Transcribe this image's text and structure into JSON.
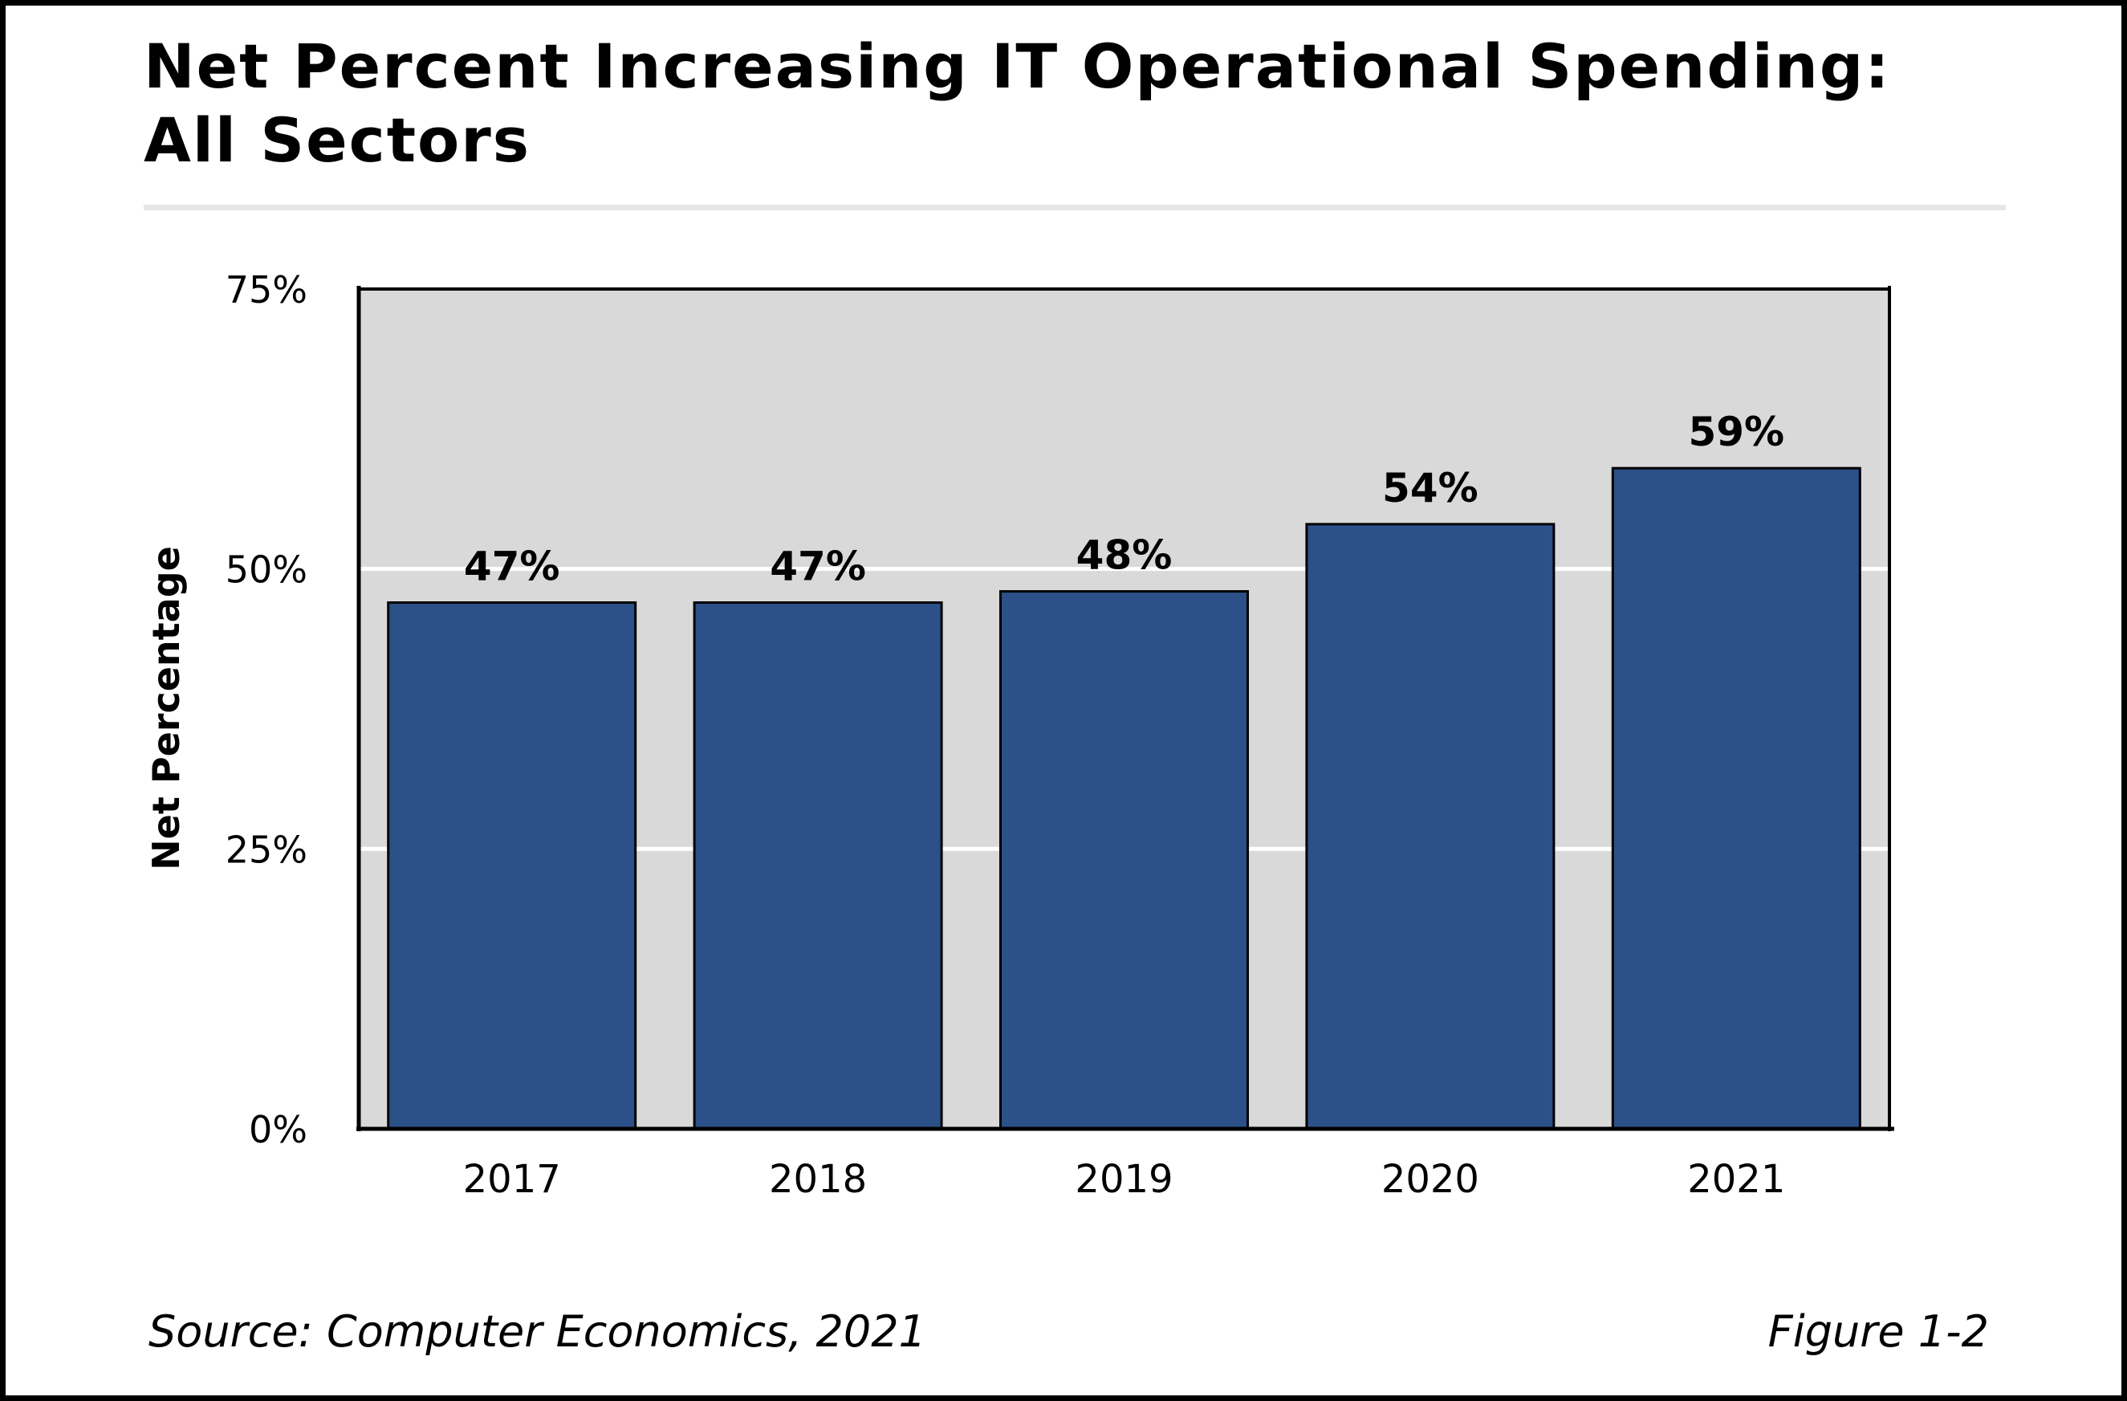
{
  "chart_data": {
    "type": "bar",
    "title": "Net Percent Increasing IT Operational Spending: All Sectors",
    "title_lines": [
      "Net Percent Increasing IT Operational Spending:",
      "All Sectors"
    ],
    "categories": [
      "2017",
      "2018",
      "2019",
      "2020",
      "2021"
    ],
    "values": [
      47,
      47,
      48,
      54,
      59
    ],
    "data_labels": [
      "47%",
      "47%",
      "48%",
      "54%",
      "59%"
    ],
    "xlabel": "",
    "ylabel": "Net Percentage",
    "ylim": [
      0,
      75
    ],
    "yticks": [
      0,
      25,
      50,
      75
    ],
    "ytick_labels": [
      "0%",
      "25%",
      "50%",
      "75%"
    ],
    "grid": true,
    "colors": {
      "bar": "#2c5088",
      "plot_background": "#d9d9d9",
      "grid": "#ffffff"
    }
  },
  "footer": {
    "source": "Source: Computer Economics, 2021",
    "figure": "Figure 1-2"
  }
}
